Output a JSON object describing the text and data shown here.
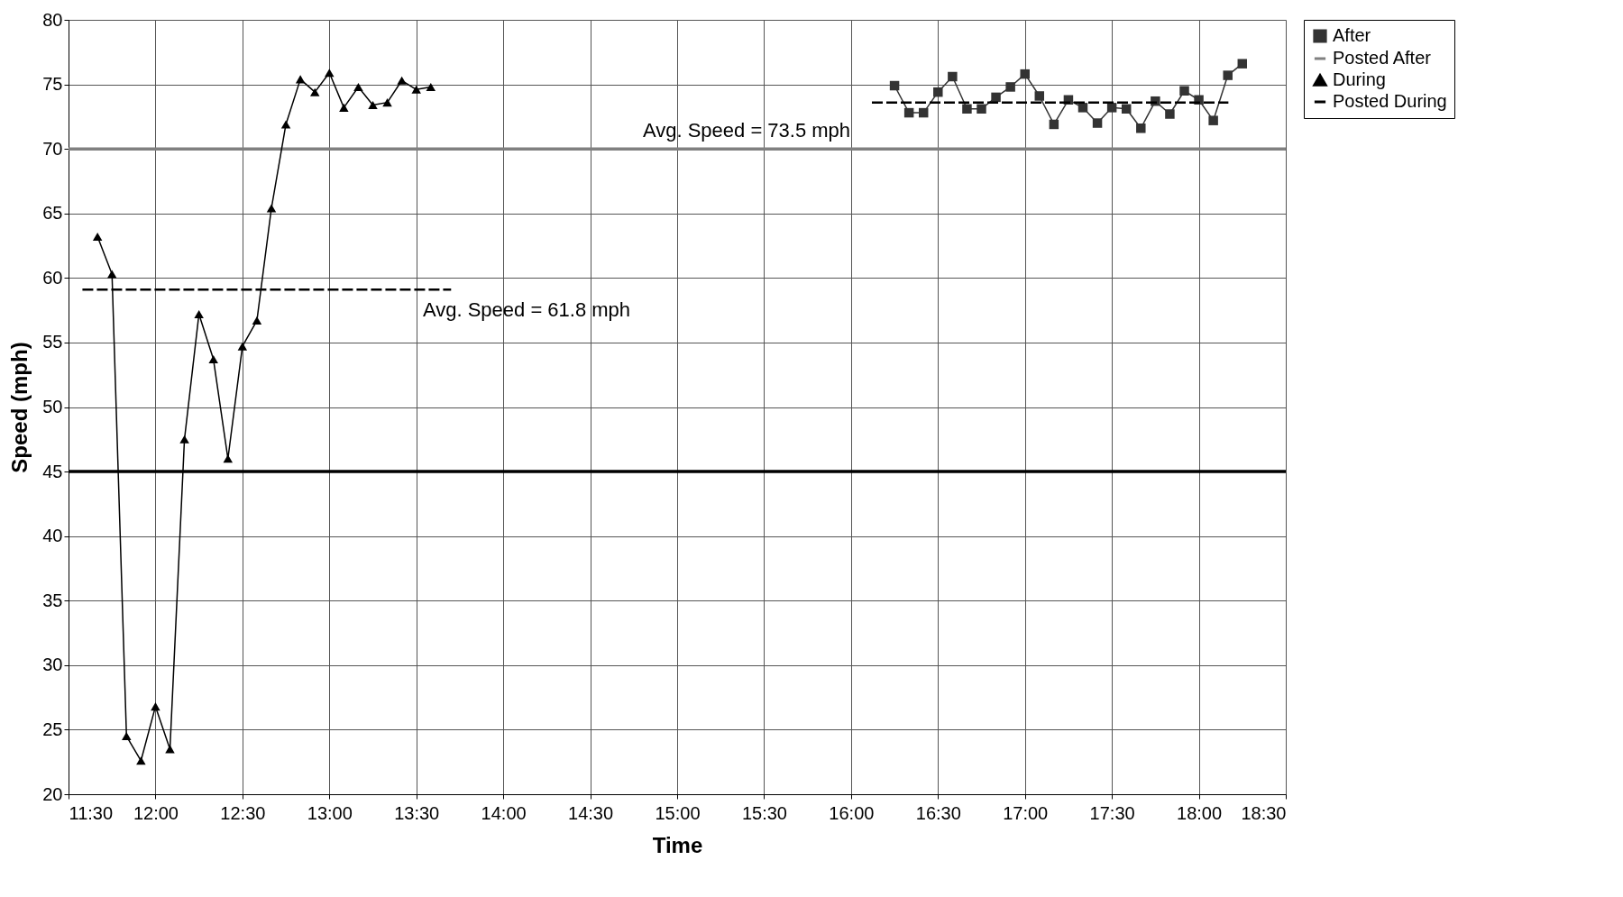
{
  "chart_data": {
    "type": "line",
    "xlabel": "Time",
    "ylabel": "Speed (mph)",
    "xlim": [
      11.5,
      18.5
    ],
    "xticks": [
      {
        "value": 11.5,
        "label": "11:30"
      },
      {
        "value": 12,
        "label": "12:00"
      },
      {
        "value": 12.5,
        "label": "12:30"
      },
      {
        "value": 13,
        "label": "13:00"
      },
      {
        "value": 13.5,
        "label": "13:30"
      },
      {
        "value": 14,
        "label": "14:00"
      },
      {
        "value": 14.5,
        "label": "14:30"
      },
      {
        "value": 15,
        "label": "15:00"
      },
      {
        "value": 15.5,
        "label": "15:30"
      },
      {
        "value": 16,
        "label": "16:00"
      },
      {
        "value": 16.5,
        "label": "16:30"
      },
      {
        "value": 17,
        "label": "17:00"
      },
      {
        "value": 17.5,
        "label": "17:30"
      },
      {
        "value": 18,
        "label": "18:00"
      },
      {
        "value": 18.5,
        "label": "18:30"
      }
    ],
    "ylim": [
      20,
      80
    ],
    "yticks": [
      20,
      25,
      30,
      35,
      40,
      45,
      50,
      55,
      60,
      65,
      70,
      75,
      80
    ],
    "grid": true,
    "legend": "right",
    "series": [
      {
        "name": "After",
        "color": "#333333",
        "marker": "square",
        "line_style": "solid",
        "x": [
          16.25,
          16.3333,
          16.4167,
          16.5,
          16.5833,
          16.6667,
          16.75,
          16.8333,
          16.9167,
          17,
          17.0833,
          17.1667,
          17.25,
          17.3333,
          17.4167,
          17.5,
          17.5833,
          17.6667,
          17.75,
          17.8333,
          17.9167,
          18,
          18.0833,
          18.1667,
          18.25
        ],
        "values": [
          74.9,
          72.8,
          72.8,
          74.4,
          75.6,
          73.1,
          73.1,
          74.0,
          74.8,
          75.8,
          74.1,
          71.9,
          73.8,
          73.2,
          72.0,
          73.2,
          73.1,
          71.6,
          73.7,
          72.7,
          74.5,
          73.8,
          72.2,
          75.7,
          76.6
        ]
      },
      {
        "name": "Posted After",
        "color": "#808080",
        "marker": "none",
        "line_style": "solid",
        "x": [
          11.5,
          18.5
        ],
        "values": [
          70,
          70
        ]
      },
      {
        "name": "During",
        "color": "#000000",
        "marker": "triangle",
        "line_style": "solid",
        "x": [
          11.6667,
          11.75,
          11.8333,
          11.9167,
          12,
          12.0833,
          12.1667,
          12.25,
          12.3333,
          12.4167,
          12.5,
          12.5833,
          12.6667,
          12.75,
          12.8333,
          12.9167,
          13,
          13.0833,
          13.1667,
          13.25,
          13.3333,
          13.4167,
          13.5,
          13.5833
        ],
        "values": [
          63.2,
          60.3,
          24.5,
          22.6,
          26.8,
          23.5,
          47.5,
          57.2,
          53.7,
          46.0,
          54.7,
          56.7,
          65.4,
          71.9,
          75.4,
          74.4,
          75.9,
          73.2,
          74.8,
          73.4,
          73.6,
          75.3,
          74.6,
          74.8
        ]
      },
      {
        "name": "Posted During",
        "color": "#000000",
        "marker": "none",
        "line_style": "solid",
        "x": [
          11.5,
          18.5
        ],
        "values": [
          45,
          45
        ]
      },
      {
        "color": "#000000",
        "marker": "none",
        "line_style": "dashed",
        "x": [
          11.58,
          13.7
        ],
        "values": [
          59.1,
          59.1
        ]
      },
      {
        "color": "#000000",
        "marker": "none",
        "line_style": "dashed",
        "x": [
          16.12,
          18.17
        ],
        "values": [
          73.6,
          73.6
        ]
      }
    ],
    "annotations": [
      "Avg. Speed = 73.5 mph",
      "Avg. Speed = 61.8 mph"
    ]
  }
}
